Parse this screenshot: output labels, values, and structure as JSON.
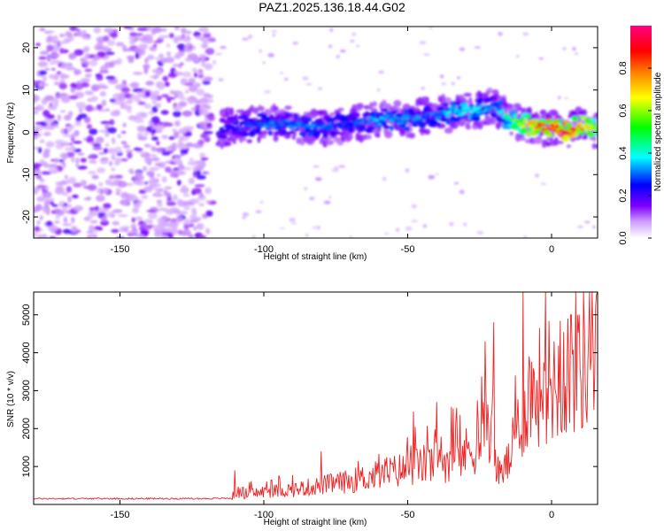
{
  "title": "PAZ1.2025.136.18.44.G02",
  "chart_data": [
    {
      "type": "heatmap",
      "xlabel": "Height of straight line (km)",
      "ylabel": "Frequency (Hz)",
      "xlim": [
        -180,
        16
      ],
      "ylim": [
        -25,
        25
      ],
      "x_ticks": [
        "-150",
        "-100",
        "-50",
        "0"
      ],
      "x_tick_values": [
        -150,
        -100,
        -50,
        0
      ],
      "y_ticks": [
        "20",
        "10",
        "0",
        "-10",
        "-20"
      ],
      "y_tick_values": [
        20,
        10,
        0,
        -10,
        -20
      ],
      "colorbar": {
        "label": "Normalized spectral amplitude",
        "range": [
          0,
          1
        ],
        "ticks": [
          "0.0",
          "0.2",
          "0.4",
          "0.6",
          "0.8"
        ],
        "tick_values": [
          0.0,
          0.2,
          0.4,
          0.6,
          0.8
        ],
        "colors": [
          "#ffffff",
          "#cc99ff",
          "#7f00ff",
          "#0000ff",
          "#00ffff",
          "#00ff00",
          "#ffff00",
          "#ff7f00",
          "#ff0000",
          "#ff0080"
        ]
      },
      "ridge": {
        "x": [
          -115,
          -100,
          -90,
          -80,
          -70,
          -60,
          -50,
          -40,
          -30,
          -20,
          -15,
          -10,
          -5,
          0,
          5,
          10,
          16
        ],
        "freq": [
          1,
          2,
          2,
          1,
          2,
          3,
          3,
          4,
          5,
          6,
          3,
          2,
          1.5,
          1,
          0,
          1.5,
          0.5
        ],
        "amplitude": [
          0.22,
          0.3,
          0.32,
          0.3,
          0.28,
          0.35,
          0.33,
          0.3,
          0.42,
          0.3,
          0.45,
          0.62,
          0.82,
          0.95,
          0.9,
          0.78,
          0.6
        ]
      },
      "noise_region": {
        "x_range": [
          -180,
          -118
        ],
        "freq_range": [
          -25,
          25
        ],
        "amplitude": 0.15
      }
    },
    {
      "type": "line",
      "xlabel": "Height of straight line (km)",
      "ylabel": "SNR (10 * v/v)",
      "xlim": [
        -180,
        16
      ],
      "ylim": [
        0,
        5600
      ],
      "x_ticks": [
        "-150",
        "-100",
        "-50",
        "0"
      ],
      "x_tick_values": [
        -150,
        -100,
        -50,
        0
      ],
      "y_ticks": [
        "1000",
        "2000",
        "3000",
        "4000",
        "5000"
      ],
      "y_tick_values": [
        1000,
        2000,
        3000,
        4000,
        5000
      ],
      "color": "#ee2222",
      "series_x": [
        -180,
        -160,
        -140,
        -120,
        -111,
        -110,
        -105,
        -100,
        -90,
        -80,
        -70,
        -60,
        -50,
        -40,
        -30,
        -24,
        -22,
        -20,
        -18,
        -15,
        -12,
        -10,
        -8,
        -5,
        -2,
        0,
        3,
        5,
        8,
        10,
        12,
        14,
        16
      ],
      "series_baseline": [
        150,
        150,
        150,
        150,
        160,
        300,
        250,
        300,
        350,
        450,
        550,
        700,
        850,
        1000,
        1200,
        1600,
        2200,
        1200,
        700,
        1000,
        1700,
        2200,
        2600,
        2700,
        3000,
        2900,
        3000,
        3200,
        3300,
        3500,
        3400,
        3500,
        3400
      ],
      "series_peaks": [
        {
          "x": -110,
          "y": 900
        },
        {
          "x": -80,
          "y": 1400
        },
        {
          "x": -48,
          "y": 2450
        },
        {
          "x": -40,
          "y": 2700
        },
        {
          "x": -23,
          "y": 4300
        },
        {
          "x": -20,
          "y": 4800
        },
        {
          "x": -10,
          "y": 5600
        },
        {
          "x": 9,
          "y": 5000
        },
        {
          "x": 13,
          "y": 4500
        }
      ]
    }
  ]
}
